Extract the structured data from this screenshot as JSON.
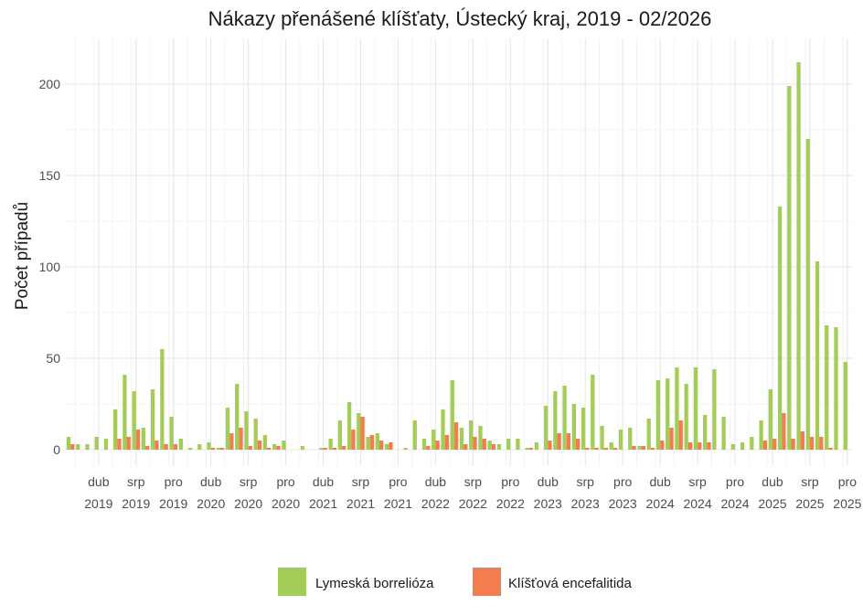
{
  "chart_data": {
    "type": "bar",
    "title": "Nákazy přenášené klíšťaty, Ústecký kraj, 2019 -  02/2026",
    "xlabel": "",
    "ylabel": "Počet případů",
    "ylim": [
      0,
      222
    ],
    "yticks": [
      0,
      50,
      100,
      150,
      200
    ],
    "grid": true,
    "legend_position": "bottom",
    "start_month": "2019-01",
    "categories_note": "monthly, Jan 2019 – Dec 2025",
    "x_tick_labels": [
      {
        "month_index": 3,
        "label1": "dub",
        "label2": "2019"
      },
      {
        "month_index": 7,
        "label1": "srp",
        "label2": "2019"
      },
      {
        "month_index": 11,
        "label1": "pro",
        "label2": "2019"
      },
      {
        "month_index": 15,
        "label1": "dub",
        "label2": "2020"
      },
      {
        "month_index": 19,
        "label1": "srp",
        "label2": "2020"
      },
      {
        "month_index": 23,
        "label1": "pro",
        "label2": "2020"
      },
      {
        "month_index": 27,
        "label1": "dub",
        "label2": "2021"
      },
      {
        "month_index": 31,
        "label1": "srp",
        "label2": "2021"
      },
      {
        "month_index": 35,
        "label1": "pro",
        "label2": "2021"
      },
      {
        "month_index": 39,
        "label1": "dub",
        "label2": "2022"
      },
      {
        "month_index": 43,
        "label1": "srp",
        "label2": "2022"
      },
      {
        "month_index": 47,
        "label1": "pro",
        "label2": "2022"
      },
      {
        "month_index": 51,
        "label1": "dub",
        "label2": "2023"
      },
      {
        "month_index": 55,
        "label1": "srp",
        "label2": "2023"
      },
      {
        "month_index": 59,
        "label1": "pro",
        "label2": "2023"
      },
      {
        "month_index": 63,
        "label1": "dub",
        "label2": "2024"
      },
      {
        "month_index": 67,
        "label1": "srp",
        "label2": "2024"
      },
      {
        "month_index": 71,
        "label1": "pro",
        "label2": "2024"
      },
      {
        "month_index": 75,
        "label1": "dub",
        "label2": "2025"
      },
      {
        "month_index": 79,
        "label1": "srp",
        "label2": "2025"
      },
      {
        "month_index": 83,
        "label1": "pro",
        "label2": "2025"
      }
    ],
    "series": [
      {
        "name": "Lymeská borrelióza",
        "color": "#a3cc59",
        "values": [
          7,
          3,
          3,
          7,
          6,
          22,
          41,
          32,
          12,
          33,
          55,
          18,
          6,
          1,
          3,
          4,
          1,
          23,
          36,
          21,
          17,
          8,
          3,
          5,
          0,
          2,
          0,
          1,
          6,
          16,
          26,
          20,
          7,
          9,
          3,
          0,
          1,
          16,
          6,
          11,
          22,
          38,
          12,
          16,
          13,
          5,
          3,
          6,
          6,
          1,
          4,
          24,
          32,
          35,
          25,
          23,
          41,
          13,
          4,
          11,
          12,
          2,
          17,
          38,
          39,
          45,
          36,
          45,
          19,
          44,
          18,
          3,
          4,
          7,
          16,
          33,
          133,
          199,
          212,
          170,
          103,
          68,
          67,
          48
        ]
      },
      {
        "name": "Klíšťová encefalitida",
        "color": "#f47d4f",
        "values": [
          3,
          0,
          0,
          0,
          0,
          6,
          7,
          11,
          2,
          5,
          3,
          3,
          0,
          0,
          0,
          1,
          1,
          9,
          12,
          2,
          5,
          1,
          2,
          0,
          0,
          0,
          0,
          1,
          1,
          2,
          11,
          18,
          8,
          5,
          4,
          0,
          0,
          0,
          2,
          5,
          8,
          15,
          3,
          7,
          6,
          3,
          0,
          0,
          0,
          1,
          0,
          5,
          9,
          9,
          6,
          1,
          1,
          1,
          1,
          0,
          2,
          2,
          1,
          5,
          12,
          16,
          4,
          4,
          4,
          0,
          0,
          0,
          0,
          0,
          5,
          6,
          20,
          6,
          10,
          7,
          7,
          1,
          0,
          0
        ]
      }
    ]
  }
}
